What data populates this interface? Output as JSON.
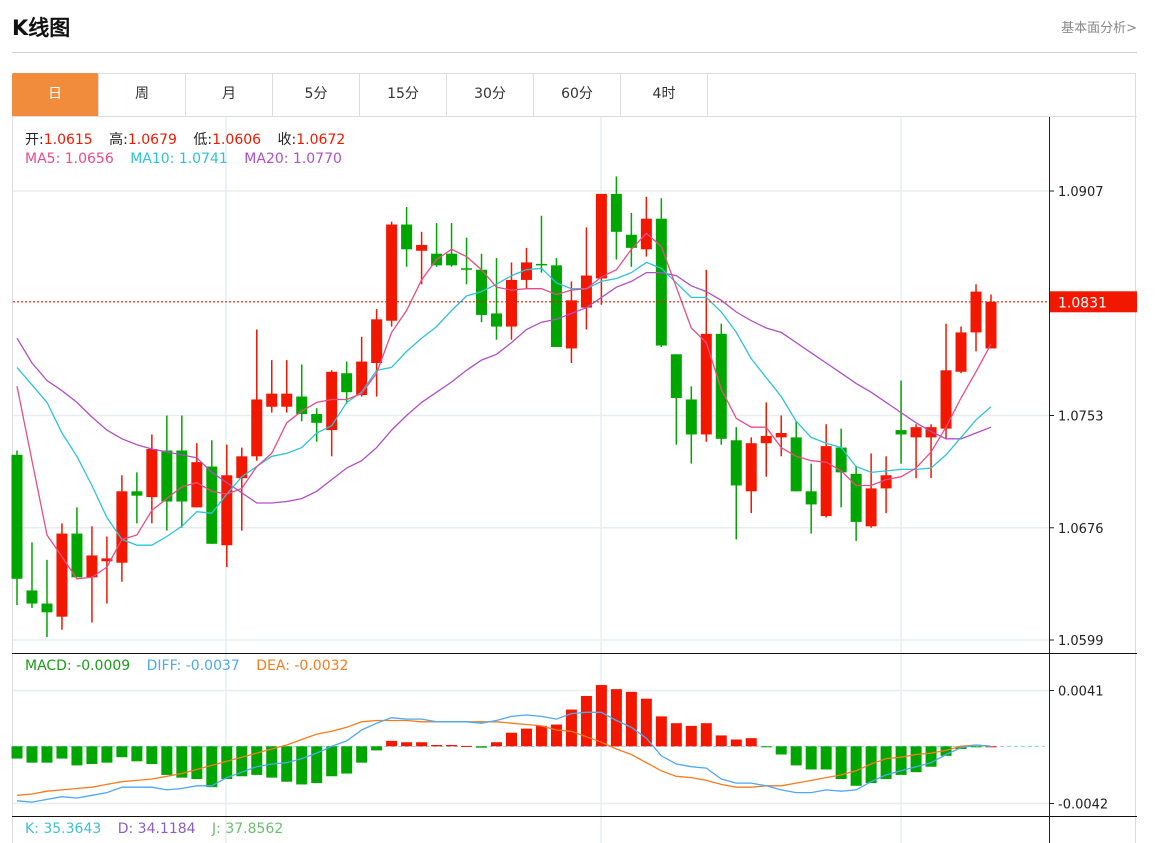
{
  "header": {
    "title": "K线图",
    "link": "基本面分析>"
  },
  "tabs": [
    {
      "label": "日",
      "active": true
    },
    {
      "label": "周"
    },
    {
      "label": "月"
    },
    {
      "label": "5分"
    },
    {
      "label": "15分"
    },
    {
      "label": "30分"
    },
    {
      "label": "60分"
    },
    {
      "label": "4时"
    }
  ],
  "legend": {
    "open_label": "开:",
    "open": "1.0615",
    "high_label": "高:",
    "high": "1.0679",
    "low_label": "低:",
    "low": "1.0606",
    "close_label": "收:",
    "close": "1.0672",
    "ma5_label": "MA5: ",
    "ma5": "1.0656",
    "ma10_label": "MA10: ",
    "ma10": "1.0741",
    "ma20_label": "MA20: ",
    "ma20": "1.0770",
    "macd_label": "MACD: ",
    "macd": "-0.0009",
    "diff_label": "DIFF: ",
    "diff": "-0.0037",
    "dea_label": "DEA: ",
    "dea": "-0.0032",
    "k_label": "K: ",
    "k": "35.3643",
    "d_label": "D: ",
    "d": "34.1184",
    "j_label": "J: ",
    "j": "37.8562"
  },
  "colors": {
    "up": "#f21800",
    "down": "#00a600",
    "accent_tab": "#f28c3d",
    "ma5": "#ea4c89",
    "ma10": "#2cc3dc",
    "ma20": "#b04fc6",
    "diff": "#4ea8f2",
    "dea": "#f97b1c",
    "macd_text": "#1a9e1a",
    "k": "#3fc1d8",
    "d": "#8a5fc7",
    "j": "#6cbf6c"
  },
  "chart_data": {
    "type": "candlestick",
    "price_axis": {
      "ticks": [
        "1.0907",
        "1.0753",
        "1.0676",
        "1.0599"
      ],
      "range": [
        1.0599,
        1.0907
      ]
    },
    "last_price": "1.0831",
    "candles_ohlc": [
      [
        1.0726,
        1.0729,
        1.0623,
        1.0641
      ],
      [
        1.0633,
        1.0666,
        1.0621,
        1.0624
      ],
      [
        1.0624,
        1.0654,
        1.0601,
        1.0618
      ],
      [
        1.0615,
        1.0679,
        1.0606,
        1.0672
      ],
      [
        1.0672,
        1.069,
        1.0642,
        1.0642
      ],
      [
        1.0642,
        1.0677,
        1.0611,
        1.0657
      ],
      [
        1.0653,
        1.067,
        1.0624,
        1.0655
      ],
      [
        1.0652,
        1.0712,
        1.0639,
        1.0701
      ],
      [
        1.0701,
        1.0714,
        1.0679,
        1.0698
      ],
      [
        1.0697,
        1.074,
        1.0679,
        1.073
      ],
      [
        1.0729,
        1.0753,
        1.0674,
        1.0694
      ],
      [
        1.0729,
        1.0753,
        1.0676,
        1.0694
      ],
      [
        1.069,
        1.0734,
        1.069,
        1.0721
      ],
      [
        1.0718,
        1.0736,
        1.0665,
        1.0665
      ],
      [
        1.0664,
        1.0733,
        1.0649,
        1.0712
      ],
      [
        1.071,
        1.0731,
        1.0674,
        1.0725
      ],
      [
        1.0725,
        1.0812,
        1.0722,
        1.0764
      ],
      [
        1.0759,
        1.0791,
        1.0755,
        1.0768
      ],
      [
        1.0759,
        1.0791,
        1.0755,
        1.0768
      ],
      [
        1.0766,
        1.0788,
        1.0749,
        1.0754
      ],
      [
        1.0754,
        1.0758,
        1.0735,
        1.0748
      ],
      [
        1.0743,
        1.0784,
        1.0725,
        1.0783
      ],
      [
        1.0782,
        1.079,
        1.0761,
        1.0769
      ],
      [
        1.0767,
        1.0807,
        1.0766,
        1.079
      ],
      [
        1.0789,
        1.0826,
        1.0766,
        1.0819
      ],
      [
        1.0818,
        1.0886,
        1.0814,
        1.0884
      ],
      [
        1.0884,
        1.0896,
        1.0855,
        1.0867
      ],
      [
        1.0866,
        1.0879,
        1.0843,
        1.087
      ],
      [
        1.0864,
        1.0885,
        1.0855,
        1.0856
      ],
      [
        1.0864,
        1.0885,
        1.0855,
        1.0856
      ],
      [
        1.0854,
        1.0875,
        1.0843,
        1.0853
      ],
      [
        1.0853,
        1.0864,
        1.0817,
        1.0822
      ],
      [
        1.0823,
        1.0861,
        1.0805,
        1.0814
      ],
      [
        1.0814,
        1.0858,
        1.0805,
        1.0846
      ],
      [
        1.0846,
        1.0868,
        1.084,
        1.0858
      ],
      [
        1.0857,
        1.089,
        1.0851,
        1.0856
      ],
      [
        1.0856,
        1.0861,
        1.08,
        1.08
      ],
      [
        1.0799,
        1.0845,
        1.0789,
        1.0832
      ],
      [
        1.0827,
        1.0882,
        1.0812,
        1.0849
      ],
      [
        1.0847,
        1.0905,
        1.0829,
        1.0905
      ],
      [
        1.0905,
        1.0917,
        1.086,
        1.0879
      ],
      [
        1.0877,
        1.0892,
        1.0855,
        1.0868
      ],
      [
        1.0867,
        1.0903,
        1.0862,
        1.0888
      ],
      [
        1.0888,
        1.0902,
        1.08,
        1.0801
      ],
      [
        1.0795,
        1.0795,
        1.0733,
        1.0765
      ],
      [
        1.0764,
        1.0773,
        1.072,
        1.074
      ],
      [
        1.074,
        1.0853,
        1.0735,
        1.0809
      ],
      [
        1.0809,
        1.0816,
        1.0733,
        1.0737
      ],
      [
        1.0736,
        1.0745,
        1.0668,
        1.0705
      ],
      [
        1.0701,
        1.0738,
        1.0686,
        1.0734
      ],
      [
        1.0734,
        1.0762,
        1.0711,
        1.0739
      ],
      [
        1.0738,
        1.0753,
        1.0725,
        1.0741
      ],
      [
        1.0738,
        1.0749,
        1.0701,
        1.0701
      ],
      [
        1.0701,
        1.072,
        1.0672,
        1.0692
      ],
      [
        1.0684,
        1.0747,
        1.0683,
        1.0732
      ],
      [
        1.0731,
        1.0744,
        1.069,
        1.0714
      ],
      [
        1.0713,
        1.0718,
        1.0667,
        1.068
      ],
      [
        1.0677,
        1.0727,
        1.0676,
        1.0703
      ],
      [
        1.0703,
        1.0725,
        1.0686,
        1.0712
      ],
      [
        1.0743,
        1.0777,
        1.072,
        1.074
      ],
      [
        1.0738,
        1.0747,
        1.071,
        1.0745
      ],
      [
        1.0738,
        1.0747,
        1.071,
        1.0745
      ],
      [
        1.0744,
        1.0816,
        1.0737,
        1.0784
      ],
      [
        1.0783,
        1.0814,
        1.0782,
        1.081
      ],
      [
        1.081,
        1.0843,
        1.0797,
        1.0838
      ],
      [
        1.0799,
        1.0836,
        1.0799,
        1.0831
      ]
    ],
    "ma5": [
      1.0773,
      1.0722,
      1.0671,
      1.0656,
      1.0641,
      1.0642,
      1.0649,
      1.0668,
      1.0671,
      1.0688,
      1.0696,
      1.0704,
      1.0707,
      1.0701,
      1.0699,
      1.0703,
      1.0718,
      1.0727,
      1.0748,
      1.0756,
      1.0762,
      1.0764,
      1.0764,
      1.0768,
      1.0782,
      1.081,
      1.0825,
      1.0846,
      1.086,
      1.0867,
      1.0862,
      1.0853,
      1.0841,
      1.0839,
      1.084,
      1.084,
      1.0836,
      1.0839,
      1.084,
      1.0848,
      1.0853,
      1.0867,
      1.0878,
      1.0869,
      1.0841,
      1.0813,
      1.0803,
      1.0771,
      1.0751,
      1.0745,
      1.0745,
      1.0731,
      1.0725,
      1.0722,
      1.0721,
      1.0715,
      1.0705,
      1.0705,
      1.0709,
      1.0711,
      1.0717,
      1.0728,
      1.0745,
      1.0765,
      1.0783,
      1.0802
    ],
    "ma10": [
      1.0786,
      1.0774,
      1.0762,
      1.0741,
      1.0725,
      1.0705,
      1.0683,
      1.0668,
      1.0664,
      1.0664,
      1.067,
      1.0677,
      1.0687,
      1.0686,
      1.0699,
      1.0711,
      1.0718,
      1.0725,
      1.0727,
      1.0731,
      1.0741,
      1.0746,
      1.0762,
      1.0769,
      1.0784,
      1.0786,
      1.0797,
      1.0806,
      1.0814,
      1.0825,
      1.0835,
      1.0838,
      1.0843,
      1.0849,
      1.0853,
      1.0854,
      1.0844,
      1.084,
      1.084,
      1.0845,
      1.0847,
      1.0851,
      1.0858,
      1.0854,
      1.0844,
      1.0834,
      1.0834,
      1.0824,
      1.081,
      1.0792,
      1.0779,
      1.0766,
      1.0749,
      1.0738,
      1.0734,
      1.0731,
      1.0718,
      1.0714,
      1.0715,
      1.0716,
      1.0716,
      1.0717,
      1.0726,
      1.0738,
      1.075,
      1.0759
    ],
    "ma20": [
      1.0806,
      1.0789,
      1.0777,
      1.077,
      1.0762,
      1.0752,
      1.0743,
      1.0737,
      1.0733,
      1.073,
      1.0728,
      1.0726,
      1.0724,
      1.0714,
      1.0707,
      1.07,
      1.0693,
      1.0693,
      1.0694,
      1.0696,
      1.0701,
      1.0709,
      1.0717,
      1.0722,
      1.0731,
      1.0743,
      1.0753,
      1.0762,
      1.0769,
      1.0776,
      1.0784,
      1.0791,
      1.0795,
      1.0803,
      1.0812,
      1.0817,
      1.0819,
      1.0823,
      1.0827,
      1.0834,
      1.0841,
      1.0845,
      1.0851,
      1.0851,
      1.0849,
      1.0842,
      1.0838,
      1.0832,
      1.0824,
      1.0818,
      1.0813,
      1.081,
      1.0803,
      1.0796,
      1.0789,
      1.0782,
      1.0775,
      1.0769,
      1.0762,
      1.0755,
      1.0748,
      1.0742,
      1.0737,
      1.0737,
      1.0741,
      1.0745
    ],
    "macd_axis": {
      "ticks": [
        "0.0041",
        "-0.0042"
      ],
      "range": [
        -0.0042,
        0.0041
      ]
    },
    "macd_hist": [
      -0.0009,
      -0.0012,
      -0.0012,
      -0.0009,
      -0.0014,
      -0.0013,
      -0.0012,
      -0.0008,
      -0.0011,
      -0.0013,
      -0.0021,
      -0.0023,
      -0.0024,
      -0.003,
      -0.0024,
      -0.0022,
      -0.0021,
      -0.0023,
      -0.0026,
      -0.0028,
      -0.0027,
      -0.0022,
      -0.002,
      -0.0012,
      -0.0003,
      0.0004,
      0.0003,
      0.0003,
      0.0001,
      0.0001,
      3e-05,
      -0.0001,
      0.0003,
      0.001,
      0.0013,
      0.0015,
      0.0016,
      0.0027,
      0.0037,
      0.0045,
      0.0042,
      0.004,
      0.0035,
      0.0022,
      0.0017,
      0.0015,
      0.0017,
      0.0008,
      0.0005,
      0.0006,
      -2e-05,
      -0.0006,
      -0.0014,
      -0.0017,
      -0.0017,
      -0.0024,
      -0.0029,
      -0.0027,
      -0.0024,
      -0.0021,
      -0.0019,
      -0.0015,
      -0.0007,
      -0.0002,
      -5e-05,
      0
    ],
    "diff": [
      -0.004,
      -0.0041,
      -0.0039,
      -0.0037,
      -0.0038,
      -0.0036,
      -0.0034,
      -0.003,
      -0.003,
      -0.003,
      -0.0032,
      -0.0031,
      -0.0029,
      -0.0029,
      -0.0023,
      -0.0019,
      -0.0015,
      -0.0013,
      -0.0012,
      -0.0009,
      -0.0005,
      0.0,
      0.0004,
      0.0012,
      0.0017,
      0.0021,
      0.002,
      0.002,
      0.0018,
      0.0018,
      0.0018,
      0.0017,
      0.0019,
      0.0022,
      0.0023,
      0.0022,
      0.002,
      0.0024,
      0.0025,
      0.0025,
      0.0019,
      0.0014,
      0.0006,
      -0.0007,
      -0.0013,
      -0.0015,
      -0.0016,
      -0.0024,
      -0.0027,
      -0.0027,
      -0.0029,
      -0.0032,
      -0.0034,
      -0.0034,
      -0.0032,
      -0.0033,
      -0.0032,
      -0.0026,
      -0.0021,
      -0.0018,
      -0.0015,
      -0.0012,
      -0.0006,
      -0.0001,
      0.0001,
      0.0
    ],
    "dea": [
      -0.0036,
      -0.0035,
      -0.0033,
      -0.0032,
      -0.0031,
      -0.003,
      -0.0028,
      -0.0026,
      -0.0025,
      -0.0024,
      -0.0022,
      -0.002,
      -0.0017,
      -0.0014,
      -0.0011,
      -0.0008,
      -0.0005,
      -0.0002,
      0.0001,
      0.0005,
      0.0009,
      0.0011,
      0.0014,
      0.0018,
      0.0019,
      0.0019,
      0.0019,
      0.0018,
      0.0018,
      0.0018,
      0.0018,
      0.0018,
      0.0018,
      0.0017,
      0.0016,
      0.0015,
      0.0012,
      0.0011,
      0.0007,
      0.0003,
      -0.0002,
      -0.0006,
      -0.0012,
      -0.0018,
      -0.0022,
      -0.0023,
      -0.0025,
      -0.0028,
      -0.003,
      -0.003,
      -0.0029,
      -0.0029,
      -0.0027,
      -0.0025,
      -0.0023,
      -0.0021,
      -0.0018,
      -0.0013,
      -0.0009,
      -0.0008,
      -0.0006,
      -0.0005,
      -0.0003,
      0.0,
      0.0001,
      0.0
    ],
    "grid": true
  }
}
